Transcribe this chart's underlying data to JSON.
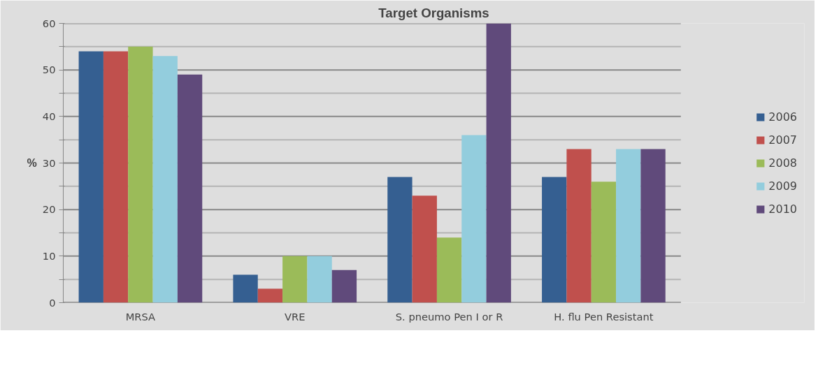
{
  "chart_data": {
    "type": "bar",
    "title": "Target Organisms",
    "ylabel": "%",
    "categories": [
      "MRSA",
      "VRE",
      "S. pneumo Pen I or R",
      "H. flu Pen Resistant"
    ],
    "series": [
      {
        "name": "2006",
        "color": "#355f91",
        "values": [
          54,
          6,
          27,
          27
        ]
      },
      {
        "name": "2007",
        "color": "#c0504d",
        "values": [
          54,
          3,
          23,
          33
        ]
      },
      {
        "name": "2008",
        "color": "#9bbb59",
        "values": [
          55,
          10,
          14,
          26
        ]
      },
      {
        "name": "2009",
        "color": "#93cddd",
        "values": [
          53,
          10,
          36,
          33
        ]
      },
      {
        "name": "2010",
        "color": "#604a7b",
        "values": [
          49,
          7,
          60,
          33
        ]
      }
    ],
    "ylim": [
      0,
      60
    ],
    "yticks": [
      0,
      {
        "value": 5,
        "label": null
      },
      10,
      {
        "value": 15,
        "label": null
      },
      20,
      {
        "value": 25,
        "label": null
      },
      30,
      {
        "value": 35,
        "label": null
      },
      40,
      {
        "value": 45,
        "label": null
      },
      50,
      {
        "value": 55,
        "label": null
      },
      60
    ],
    "grid": "y",
    "legend": "right"
  }
}
